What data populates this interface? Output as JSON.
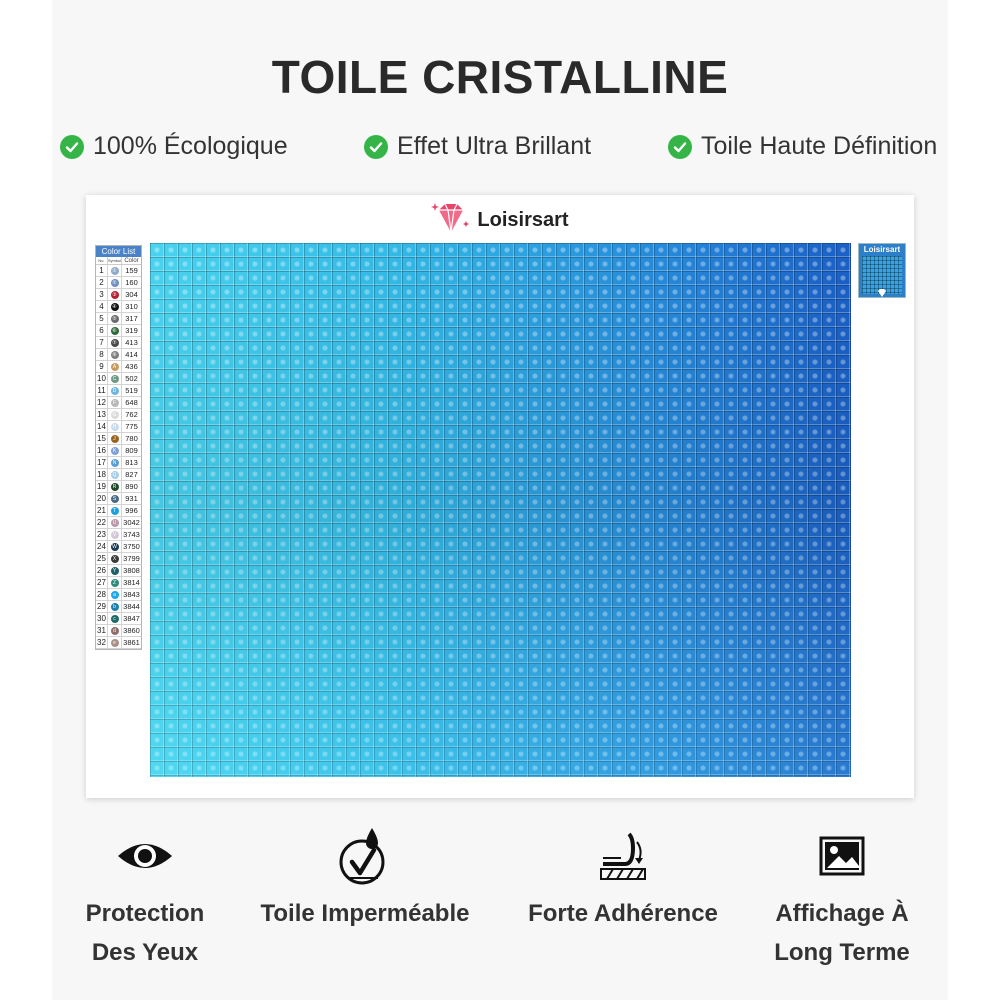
{
  "title": "TOILE CRISTALLINE",
  "features": [
    {
      "icon": "check-circle-icon",
      "label": "100% Écologique"
    },
    {
      "icon": "check-circle-icon",
      "label": "Effet Ultra Brillant"
    },
    {
      "icon": "check-circle-icon",
      "label": "Toile Haute Définition"
    }
  ],
  "canvas": {
    "brand": "Loisirsart",
    "brand_icon": "diamond-icon",
    "color_list": {
      "title": "Color List",
      "headers": [
        "No.",
        "Symbol",
        "Color"
      ],
      "rows": [
        {
          "no": "1",
          "sym": "①",
          "code": "159",
          "color": "#8ea9c9"
        },
        {
          "no": "2",
          "sym": "②",
          "code": "160",
          "color": "#6f8fbf"
        },
        {
          "no": "3",
          "sym": "③",
          "code": "304",
          "color": "#b52030"
        },
        {
          "no": "4",
          "sym": "④",
          "code": "310",
          "color": "#111111"
        },
        {
          "no": "5",
          "sym": "⑤",
          "code": "317",
          "color": "#6b6b6b"
        },
        {
          "no": "6",
          "sym": "⑥",
          "code": "319",
          "color": "#2f6a3a"
        },
        {
          "no": "7",
          "sym": "⑦",
          "code": "413",
          "color": "#4a4a4a"
        },
        {
          "no": "8",
          "sym": "⑧",
          "code": "414",
          "color": "#808080"
        },
        {
          "no": "9",
          "sym": "A",
          "code": "436",
          "color": "#c89a5c"
        },
        {
          "no": "10",
          "sym": "C",
          "code": "502",
          "color": "#6e9a84"
        },
        {
          "no": "11",
          "sym": "D",
          "code": "519",
          "color": "#6fb5de"
        },
        {
          "no": "12",
          "sym": "F",
          "code": "648",
          "color": "#b8b8b8"
        },
        {
          "no": "13",
          "sym": "G",
          "code": "762",
          "color": "#dcdcdc"
        },
        {
          "no": "14",
          "sym": "H",
          "code": "775",
          "color": "#c8dcee"
        },
        {
          "no": "15",
          "sym": "J",
          "code": "780",
          "color": "#9a6420"
        },
        {
          "no": "16",
          "sym": "K",
          "code": "809",
          "color": "#7f9fd6"
        },
        {
          "no": "17",
          "sym": "N",
          "code": "813",
          "color": "#5d9fd2"
        },
        {
          "no": "18",
          "sym": "Q",
          "code": "827",
          "color": "#a8cde8"
        },
        {
          "no": "19",
          "sym": "R",
          "code": "890",
          "color": "#1f4a2a"
        },
        {
          "no": "20",
          "sym": "S",
          "code": "931",
          "color": "#4b6a86"
        },
        {
          "no": "21",
          "sym": "T",
          "code": "996",
          "color": "#1ea0e0"
        },
        {
          "no": "22",
          "sym": "U",
          "code": "3042",
          "color": "#b99aa8"
        },
        {
          "no": "23",
          "sym": "V",
          "code": "3743",
          "color": "#d4c8d8"
        },
        {
          "no": "24",
          "sym": "W",
          "code": "3750",
          "color": "#1e3a56"
        },
        {
          "no": "25",
          "sym": "X",
          "code": "3799",
          "color": "#3a3a3a"
        },
        {
          "no": "26",
          "sym": "Y",
          "code": "3808",
          "color": "#1e5f6a"
        },
        {
          "no": "27",
          "sym": "Z",
          "code": "3814",
          "color": "#2f8a7a"
        },
        {
          "no": "28",
          "sym": "a",
          "code": "3843",
          "color": "#1fa8e8"
        },
        {
          "no": "29",
          "sym": "b",
          "code": "3844",
          "color": "#1c7fae"
        },
        {
          "no": "30",
          "sym": "c",
          "code": "3847",
          "color": "#1f6a66"
        },
        {
          "no": "31",
          "sym": "d",
          "code": "3860",
          "color": "#8e6e6a"
        },
        {
          "no": "32",
          "sym": "e",
          "code": "3861",
          "color": "#a89088"
        }
      ]
    },
    "thumbnail_brand": "Loisirsart"
  },
  "benefits": [
    {
      "icon": "eye-icon",
      "line1": "Protection",
      "line2": "Des Yeux"
    },
    {
      "icon": "waterproof-drop-icon",
      "line1": "Toile Imperméable",
      "line2": ""
    },
    {
      "icon": "adhesion-peel-icon",
      "line1": "Forte Adhérence",
      "line2": ""
    },
    {
      "icon": "image-icon",
      "line1": "Affichage À",
      "line2": "Long Terme"
    }
  ],
  "colors": {
    "check_green": "#35b548",
    "brand_pink": "#e8456b",
    "mosaic_light": "#4ad4f0",
    "mosaic_dark": "#1a5fc5"
  }
}
